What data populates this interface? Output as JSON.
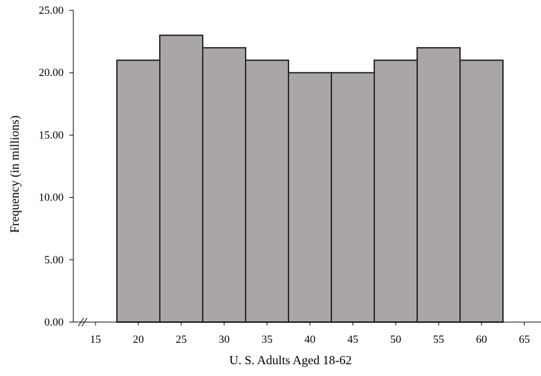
{
  "chart_data": {
    "type": "bar",
    "title": "",
    "xlabel": "U. S. Adults Aged 18-62",
    "ylabel": "Frequency (in millions)",
    "ylim": [
      0,
      25
    ],
    "y_ticks": [
      "0.00",
      "5.00",
      "10.00",
      "15.00",
      "20.00",
      "25.00"
    ],
    "x_ticks": [
      "15",
      "20",
      "25",
      "30",
      "35",
      "40",
      "45",
      "50",
      "55",
      "60",
      "65"
    ],
    "categories": [
      "20",
      "25",
      "30",
      "35",
      "40",
      "45",
      "50",
      "55",
      "60"
    ],
    "values": [
      21,
      23,
      22,
      21,
      20,
      20,
      21,
      22,
      21
    ],
    "bar_color": "#aaa6a5",
    "bar_edge_color": "#2b2b2b",
    "grid": false,
    "x_axis_break": true
  }
}
